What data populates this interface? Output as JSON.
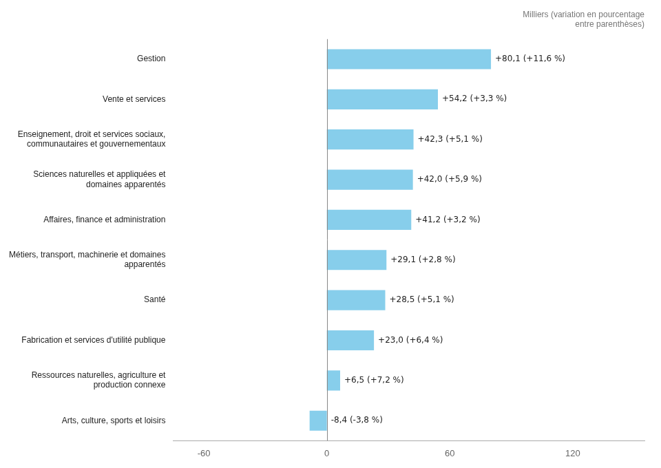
{
  "chart_data": {
    "type": "bar",
    "orientation": "horizontal",
    "xlabel": "Milliers (variation en pourcentage\nentre parenthèses)",
    "categories": [
      "Gestion",
      "Vente et services",
      "Enseignement, droit et services sociaux,\ncommunautaires et gouvernementaux",
      "Sciences naturelles et appliquées et\ndomaines apparentés",
      "Affaires, finance et administration",
      "Métiers, transport, machinerie et domaines\napparentés",
      "Santé",
      "Fabrication et services d'utilité publique",
      "Ressources naturelles, agriculture et\nproduction connexe",
      "Arts, culture, sports et loisirs"
    ],
    "values": [
      80.1,
      54.2,
      42.3,
      42.0,
      41.2,
      29.1,
      28.5,
      23.0,
      6.5,
      -8.4
    ],
    "value_labels": [
      "+80,1 (+11,6 %)",
      "+54,2 (+3,3 %)",
      "+42,3 (+5,1 %)",
      "+42,0 (+5,9 %)",
      "+41,2 (+3,2 %)",
      "+29,1 (+2,8 %)",
      "+28,5 (+5,1 %)",
      "+23,0 (+6,4 %)",
      "+6,5 (+7,2 %)",
      "-8,4 (-3,8 %)"
    ],
    "data_labels": true,
    "color": "#87CEEB",
    "xlim": [
      -75,
      155
    ],
    "xticks": [
      -60,
      0,
      60,
      120
    ],
    "grid": false
  }
}
